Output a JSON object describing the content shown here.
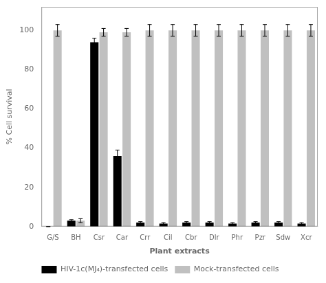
{
  "chart_data": {
    "type": "bar",
    "xlabel": "Plant extracts",
    "ylabel": "% Cell survival",
    "categories": [
      "G/S",
      "BH",
      "Csr",
      "Car",
      "Crr",
      "Cil",
      "Cbr",
      "Dlr",
      "Phr",
      "Pzr",
      "Sdw",
      "Xcr"
    ],
    "series": [
      {
        "name": "HIV-1c(MJ₄)-transfected cells",
        "color": "#000000",
        "values": [
          0,
          3,
          94,
          36,
          2,
          1.5,
          2,
          2,
          1.5,
          2,
          2,
          1.5
        ],
        "errors": [
          0,
          0.5,
          2,
          3,
          0.5,
          0.5,
          0.5,
          0.5,
          0.5,
          0.5,
          0.5,
          0.5
        ]
      },
      {
        "name": "Mock-transfected cells",
        "color": "#c0c0c0",
        "values": [
          100,
          3,
          99,
          99,
          100,
          100,
          100,
          100,
          100,
          100,
          100,
          100
        ],
        "errors": [
          3,
          1,
          2,
          2,
          3,
          3,
          3,
          3,
          3,
          3,
          3,
          3
        ]
      }
    ],
    "ylim": [
      0,
      112
    ],
    "yticks": [
      0,
      20,
      40,
      60,
      80,
      100
    ],
    "grid": false,
    "legend": "bottom"
  }
}
